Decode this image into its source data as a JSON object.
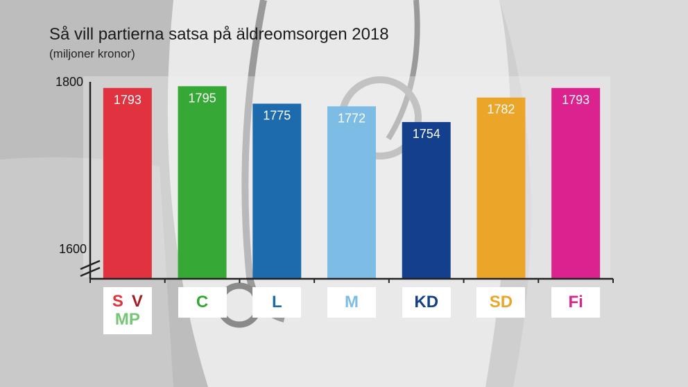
{
  "title": "Så vill partierna satsa på äldreomsorgen 2018",
  "subtitle": "(miljoner kronor)",
  "chart_data": {
    "type": "bar",
    "title": "Så vill partierna satsa på äldreomsorgen 2018",
    "subtitle": "(miljoner kronor)",
    "xlabel": "",
    "ylabel": "",
    "ylim": [
      1600,
      1800
    ],
    "y_ticks": [
      "1800",
      "1600"
    ],
    "axis_break": true,
    "grid": false,
    "categories": [
      "S V MP",
      "C",
      "L",
      "M",
      "KD",
      "SD",
      "Fi"
    ],
    "values": [
      1793,
      1795,
      1775,
      1772,
      1754,
      1782,
      1793
    ],
    "data_labels": [
      "1793",
      "1795",
      "1775",
      "1772",
      "1754",
      "1782",
      "1793"
    ],
    "colors": [
      "#e1323f",
      "#35a836",
      "#1d6aad",
      "#7dbde5",
      "#133f8d",
      "#eba62a",
      "#db228e"
    ],
    "label_colors": [
      "#ffffff",
      "#ffffff",
      "#ffffff",
      "#ffffff",
      "#ffffff",
      "#ffffff",
      "#ffffff"
    ]
  },
  "party_badges": [
    {
      "lines": [
        [
          {
            "text": "S",
            "color": "#e1323f"
          },
          {
            "text": "V",
            "color": "#a51c24"
          }
        ],
        [
          {
            "text": "MP",
            "color": "#76c676"
          }
        ]
      ]
    },
    {
      "lines": [
        [
          {
            "text": "C",
            "color": "#35a836"
          }
        ]
      ]
    },
    {
      "lines": [
        [
          {
            "text": "L",
            "color": "#1d6aad"
          }
        ]
      ]
    },
    {
      "lines": [
        [
          {
            "text": "M",
            "color": "#7dbde5"
          }
        ]
      ]
    },
    {
      "lines": [
        [
          {
            "text": "KD",
            "color": "#133f8d"
          }
        ]
      ]
    },
    {
      "lines": [
        [
          {
            "text": "SD",
            "color": "#eba62a"
          }
        ]
      ]
    },
    {
      "lines": [
        [
          {
            "text": "Fi",
            "color": "#db228e"
          }
        ]
      ]
    }
  ]
}
